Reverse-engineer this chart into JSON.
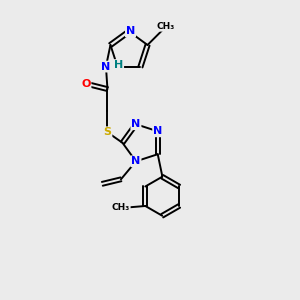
{
  "background_color": "#ebebeb",
  "bond_color": "#000000",
  "atom_colors": {
    "N": "#0000ff",
    "S": "#ccaa00",
    "O": "#ff0000",
    "H": "#008080",
    "C": "#000000"
  },
  "figsize": [
    3.0,
    3.0
  ],
  "dpi": 100
}
